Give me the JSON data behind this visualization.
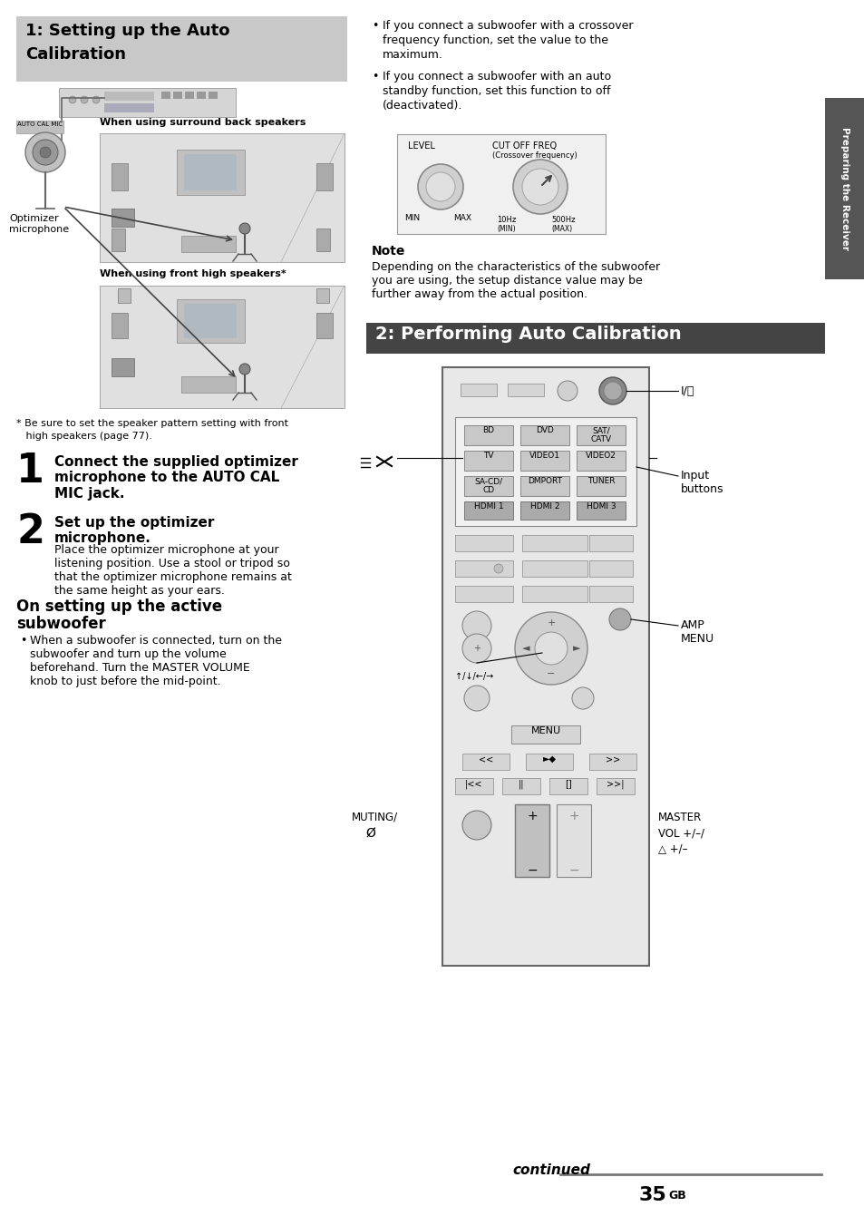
{
  "page_bg": "#ffffff",
  "section1_title_line1": "1: Setting up the Auto",
  "section1_title_line2": "Calibration",
  "section2_title": "2: Performing Auto Calibration",
  "section1_bg": "#c8c8c8",
  "section2_bg": "#444444",
  "sidebar_text": "Preparing the Receiver",
  "step1_number": "1",
  "step1_title": "Connect the supplied optimizer\nmicrophone to the AUTO CAL\nMIC jack.",
  "step2_number": "2",
  "step2_title": "Set up the optimizer\nmicrophone.",
  "step2_body": "Place the optimizer microphone at your\nlistening position. Use a stool or tripod so\nthat the optimizer microphone remains at\nthe same height as your ears.",
  "subwoofer_title_line1": "On setting up the active",
  "subwoofer_title_line2": "subwoofer",
  "bullet1": "When a subwoofer is connected, turn on the\nsubwoofer and turn up the volume\nbeforehand. Turn the MASTER VOLUME\nknob to just before the mid-point.",
  "bullet2_line1": "If you connect a subwoofer with a crossover",
  "bullet2_line2": "frequency function, set the value to the",
  "bullet2_line3": "maximum.",
  "bullet3_line1": "If you connect a subwoofer with an auto",
  "bullet3_line2": "standby function, set this function to off",
  "bullet3_line3": "(deactivated).",
  "note_title": "Note",
  "note_body": "Depending on the characteristics of the subwoofer\nyou are using, the setup distance value may be\nfurther away from the actual position.",
  "label_surround": "When using surround back speakers",
  "label_front_high": "When using front high speakers*",
  "label_optimizer_mic": "Optimizer\nmicrophone",
  "label_auto_cal_mic": "AUTO CAL MIC",
  "footnote_line1": "* Be sure to set the speaker pattern setting with front",
  "footnote_line2": "   high speakers (page 77).",
  "label_power": "I/⌛",
  "label_input_buttons": "Input\nbuttons",
  "label_amp_menu": "AMP\nMENU",
  "label_muting_line1": "MUTING/",
  "label_master_vol_line1": "MASTER",
  "label_master_vol_line2": "VOL +/–/",
  "label_master_vol_line3": "△ +/–",
  "continued_text": "continued",
  "page_number": "35",
  "page_suffix": "GB",
  "knob_level_label": "LEVEL",
  "knob_cutoff_label": "CUT OFF FREQ",
  "knob_cutoff_sub": "(Crossover frequency)",
  "knob_min": "MIN",
  "knob_max": "MAX",
  "knob_10hz": "10Hz",
  "knob_min2": "(MIN)",
  "knob_500hz": "500Hz",
  "knob_max2": "(MAX)"
}
